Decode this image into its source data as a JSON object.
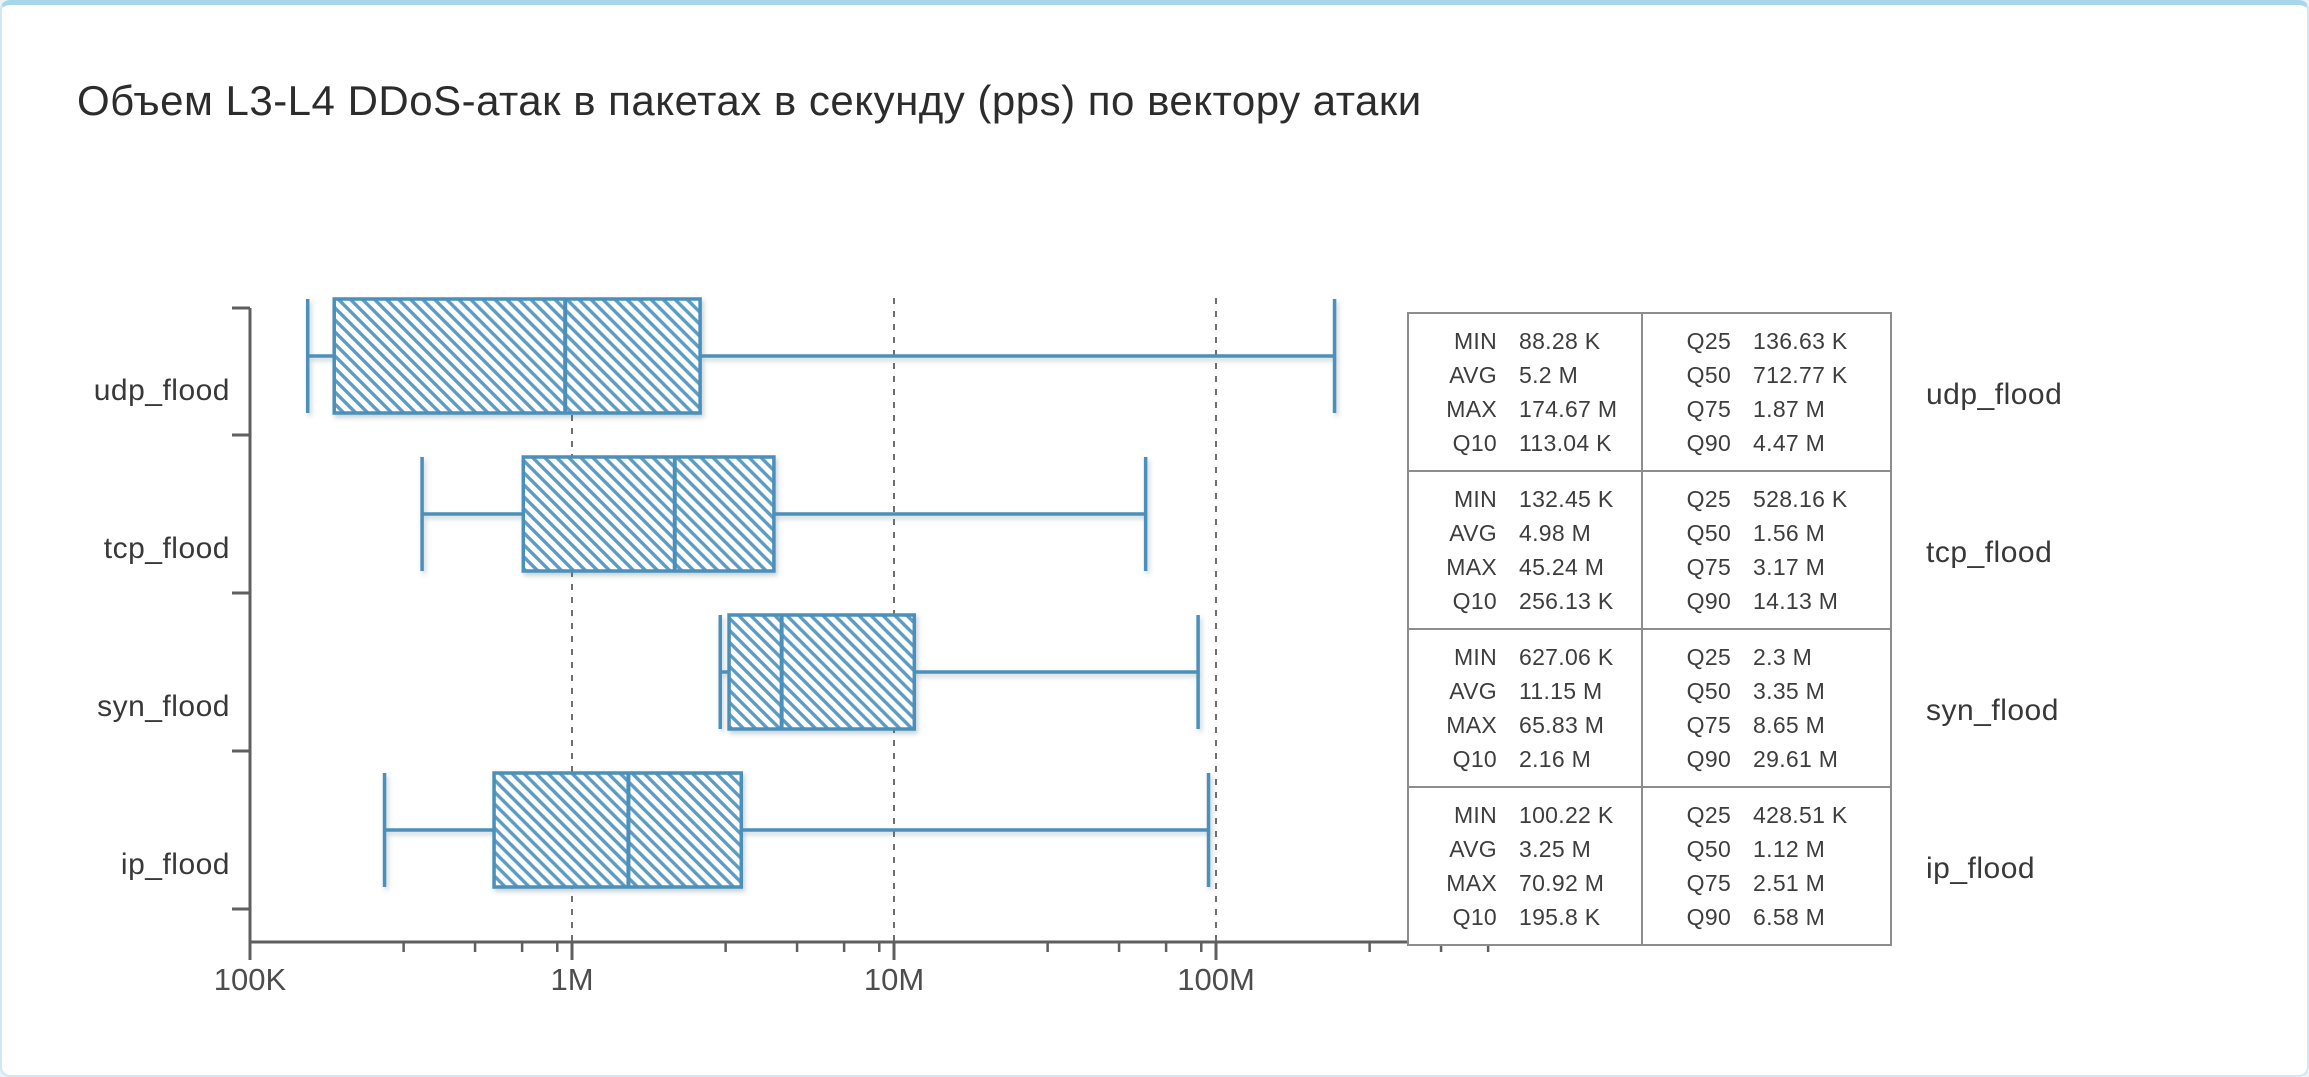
{
  "page": {
    "title": "Объем L3-L4 DDoS-атак в пакетах в секунду (pps) по вектору атаки"
  },
  "chart_data": {
    "type": "boxplot",
    "orientation": "horizontal",
    "x_scale": "log10",
    "title": "Объем L3-L4 DDoS-атак в пакетах в секунду (pps) по вектору атаки",
    "xlabel": "",
    "ylabel": "",
    "grid": "dashed vertical at major decades",
    "x_ticks": [
      {
        "label": "100K",
        "value": 100000
      },
      {
        "label": "1M",
        "value": 1000000
      },
      {
        "label": "10M",
        "value": 10000000
      },
      {
        "label": "100M",
        "value": 100000000
      }
    ],
    "x_minor_tick_values": [
      300000,
      500000,
      700000,
      900000,
      3000000,
      5000000,
      7000000,
      9000000,
      30000000,
      50000000,
      70000000,
      90000000,
      300000000,
      500000000,
      700000000
    ],
    "gridline_values": [
      1000000,
      10000000,
      100000000
    ],
    "box_spec": {
      "box_left": "q25",
      "box_mid": "q50",
      "box_right": "q75",
      "whisker_low": "q10",
      "whisker_high": "max"
    },
    "categories": [
      "udp_flood",
      "tcp_flood",
      "syn_flood",
      "ip_flood"
    ],
    "series": [
      {
        "name": "udp_flood",
        "stats": {
          "min": 88280,
          "avg": 5200000,
          "max": 174670000,
          "q10": 113040,
          "q25": 136630,
          "q50": 712770,
          "q75": 1870000,
          "q90": 4470000
        },
        "display": {
          "MIN": "88.28 K",
          "AVG": "5.2 M",
          "MAX": "174.67 M",
          "Q10": "113.04 K",
          "Q25": "136.63 K",
          "Q50": "712.77 K",
          "Q75": "1.87 M",
          "Q90": "4.47 M"
        }
      },
      {
        "name": "tcp_flood",
        "stats": {
          "min": 132450,
          "avg": 4980000,
          "max": 45240000,
          "q10": 256130,
          "q25": 528160,
          "q50": 1560000,
          "q75": 3170000,
          "q90": 14130000
        },
        "display": {
          "MIN": "132.45 K",
          "AVG": "4.98 M",
          "MAX": "45.24 M",
          "Q10": "256.13 K",
          "Q25": "528.16 K",
          "Q50": "1.56 M",
          "Q75": "3.17 M",
          "Q90": "14.13 M"
        }
      },
      {
        "name": "syn_flood",
        "stats": {
          "min": 627060,
          "avg": 11150000,
          "max": 65830000,
          "q10": 2160000,
          "q25": 2300000,
          "q50": 3350000,
          "q75": 8650000,
          "q90": 29610000
        },
        "display": {
          "MIN": "627.06 K",
          "AVG": "11.15 M",
          "MAX": "65.83 M",
          "Q10": "2.16 M",
          "Q25": "2.3 M",
          "Q50": "3.35 M",
          "Q75": "8.65 M",
          "Q90": "29.61 M"
        }
      },
      {
        "name": "ip_flood",
        "stats": {
          "min": 100220,
          "avg": 3250000,
          "max": 70920000,
          "q10": 195800,
          "q25": 428510,
          "q50": 1120000,
          "q75": 2510000,
          "q90": 6580000
        },
        "display": {
          "MIN": "100.22 K",
          "AVG": "3.25 M",
          "MAX": "70.92 M",
          "Q10": "195.8 K",
          "Q25": "428.51 K",
          "Q50": "1.12 M",
          "Q75": "2.51 M",
          "Q90": "6.58 M"
        }
      }
    ]
  },
  "stats_table": {
    "col1_labels": [
      "MIN",
      "AVG",
      "MAX",
      "Q10"
    ],
    "col2_labels": [
      "Q25",
      "Q50",
      "Q75",
      "Q90"
    ]
  },
  "colors": {
    "box_stroke": "#4b90ba",
    "hatch_line": "#5b9cc4",
    "axis": "#5f5f5f",
    "gridline": "#6f6f6f",
    "tick_label": "#4d4d4d",
    "table_border": "#8d8d8d",
    "frame_top": "#a7d6ea"
  }
}
